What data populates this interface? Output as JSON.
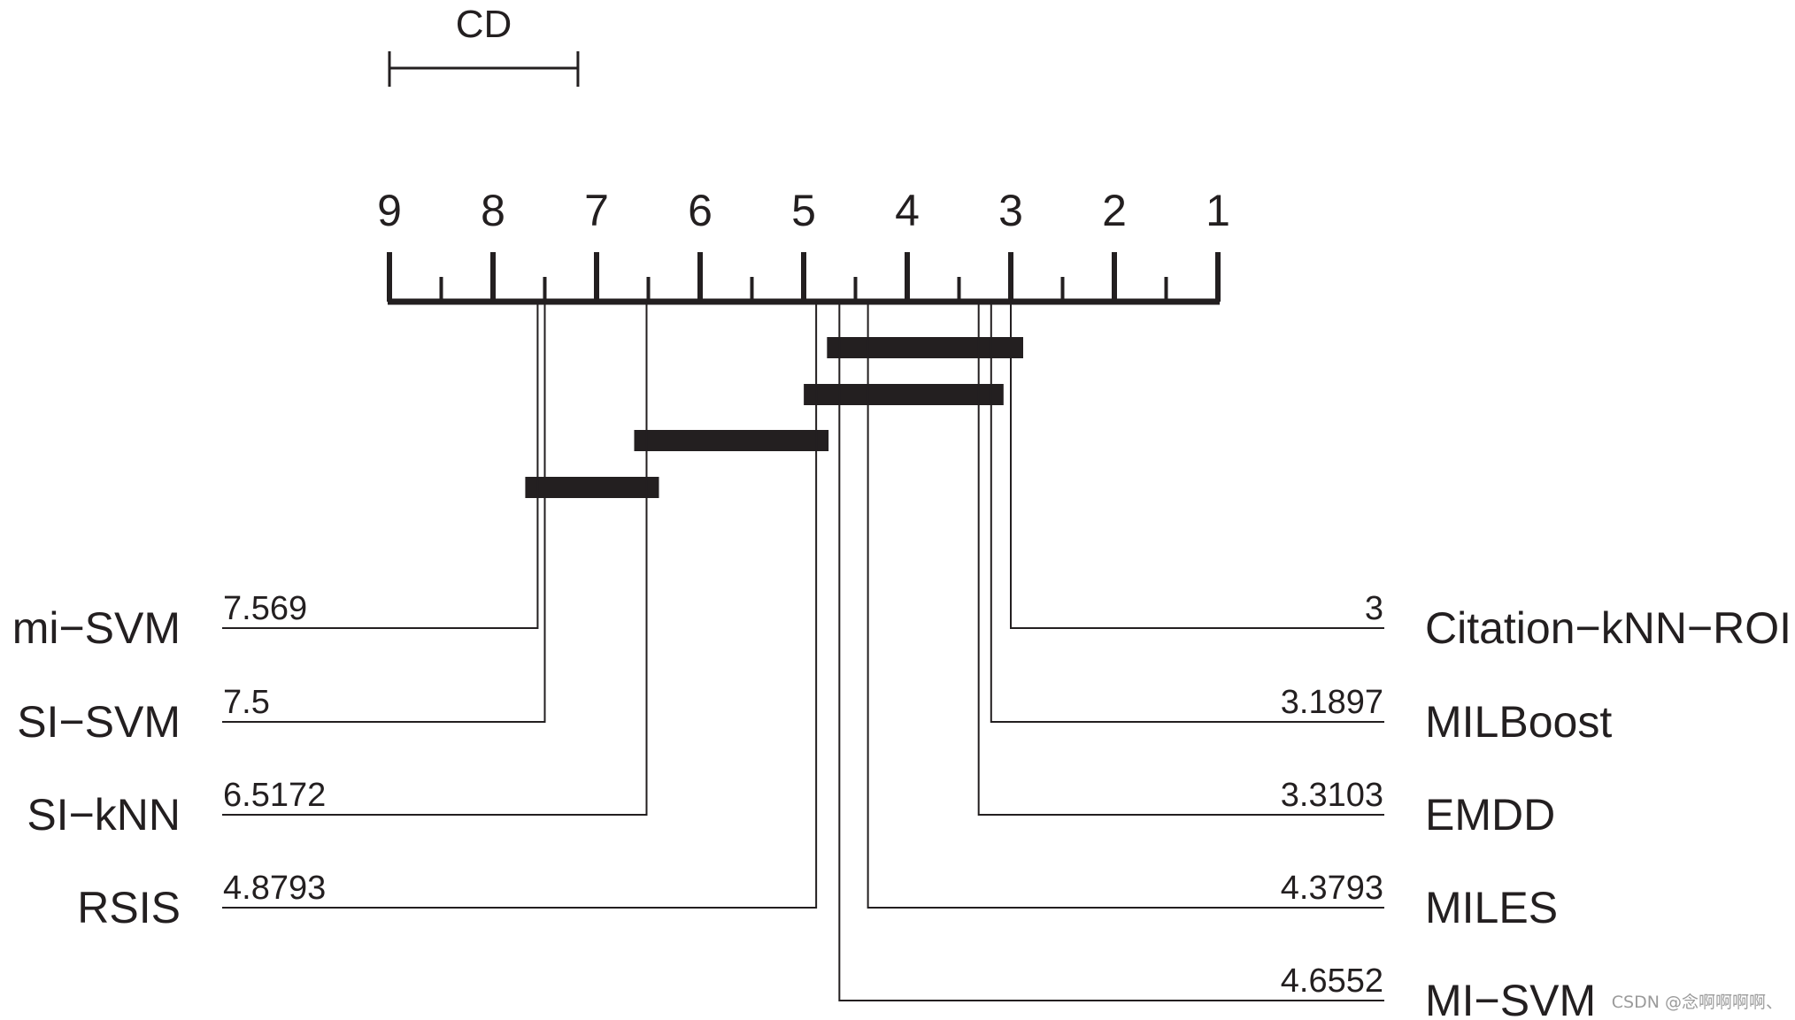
{
  "chart_data": {
    "type": "critical-difference",
    "axis": {
      "ticks": [
        "9",
        "8",
        "7",
        "6",
        "5",
        "4",
        "3",
        "2",
        "1"
      ],
      "min": 1,
      "max": 9,
      "reversed": true
    },
    "cd": {
      "label": "CD",
      "from": 9,
      "to": 7.18
    },
    "methods_left": [
      {
        "name": "mi−SVM",
        "rank": 7.569,
        "rank_label": "7.569"
      },
      {
        "name": "SI−SVM",
        "rank": 7.5,
        "rank_label": "7.5"
      },
      {
        "name": "SI−kNN",
        "rank": 6.5172,
        "rank_label": "6.5172"
      },
      {
        "name": "RSIS",
        "rank": 4.8793,
        "rank_label": "4.8793"
      }
    ],
    "methods_right": [
      {
        "name": "Citation−kNN−ROI",
        "rank": 3,
        "rank_label": "3"
      },
      {
        "name": "MILBoost",
        "rank": 3.1897,
        "rank_label": "3.1897"
      },
      {
        "name": "EMDD",
        "rank": 3.3103,
        "rank_label": "3.3103"
      },
      {
        "name": "MILES",
        "rank": 4.3793,
        "rank_label": "4.3793"
      },
      {
        "name": "MI−SVM",
        "rank": 4.6552,
        "rank_label": "4.6552"
      }
    ],
    "cliques": [
      {
        "from": 4.6552,
        "to": 3.0
      },
      {
        "from": 4.8793,
        "to": 3.1897
      },
      {
        "from": 6.5172,
        "to": 4.8793
      },
      {
        "from": 7.569,
        "to": 6.5172
      }
    ],
    "colors": {
      "ink": "#231f20"
    }
  },
  "watermark": "CSDN @念啊啊啊啊、"
}
